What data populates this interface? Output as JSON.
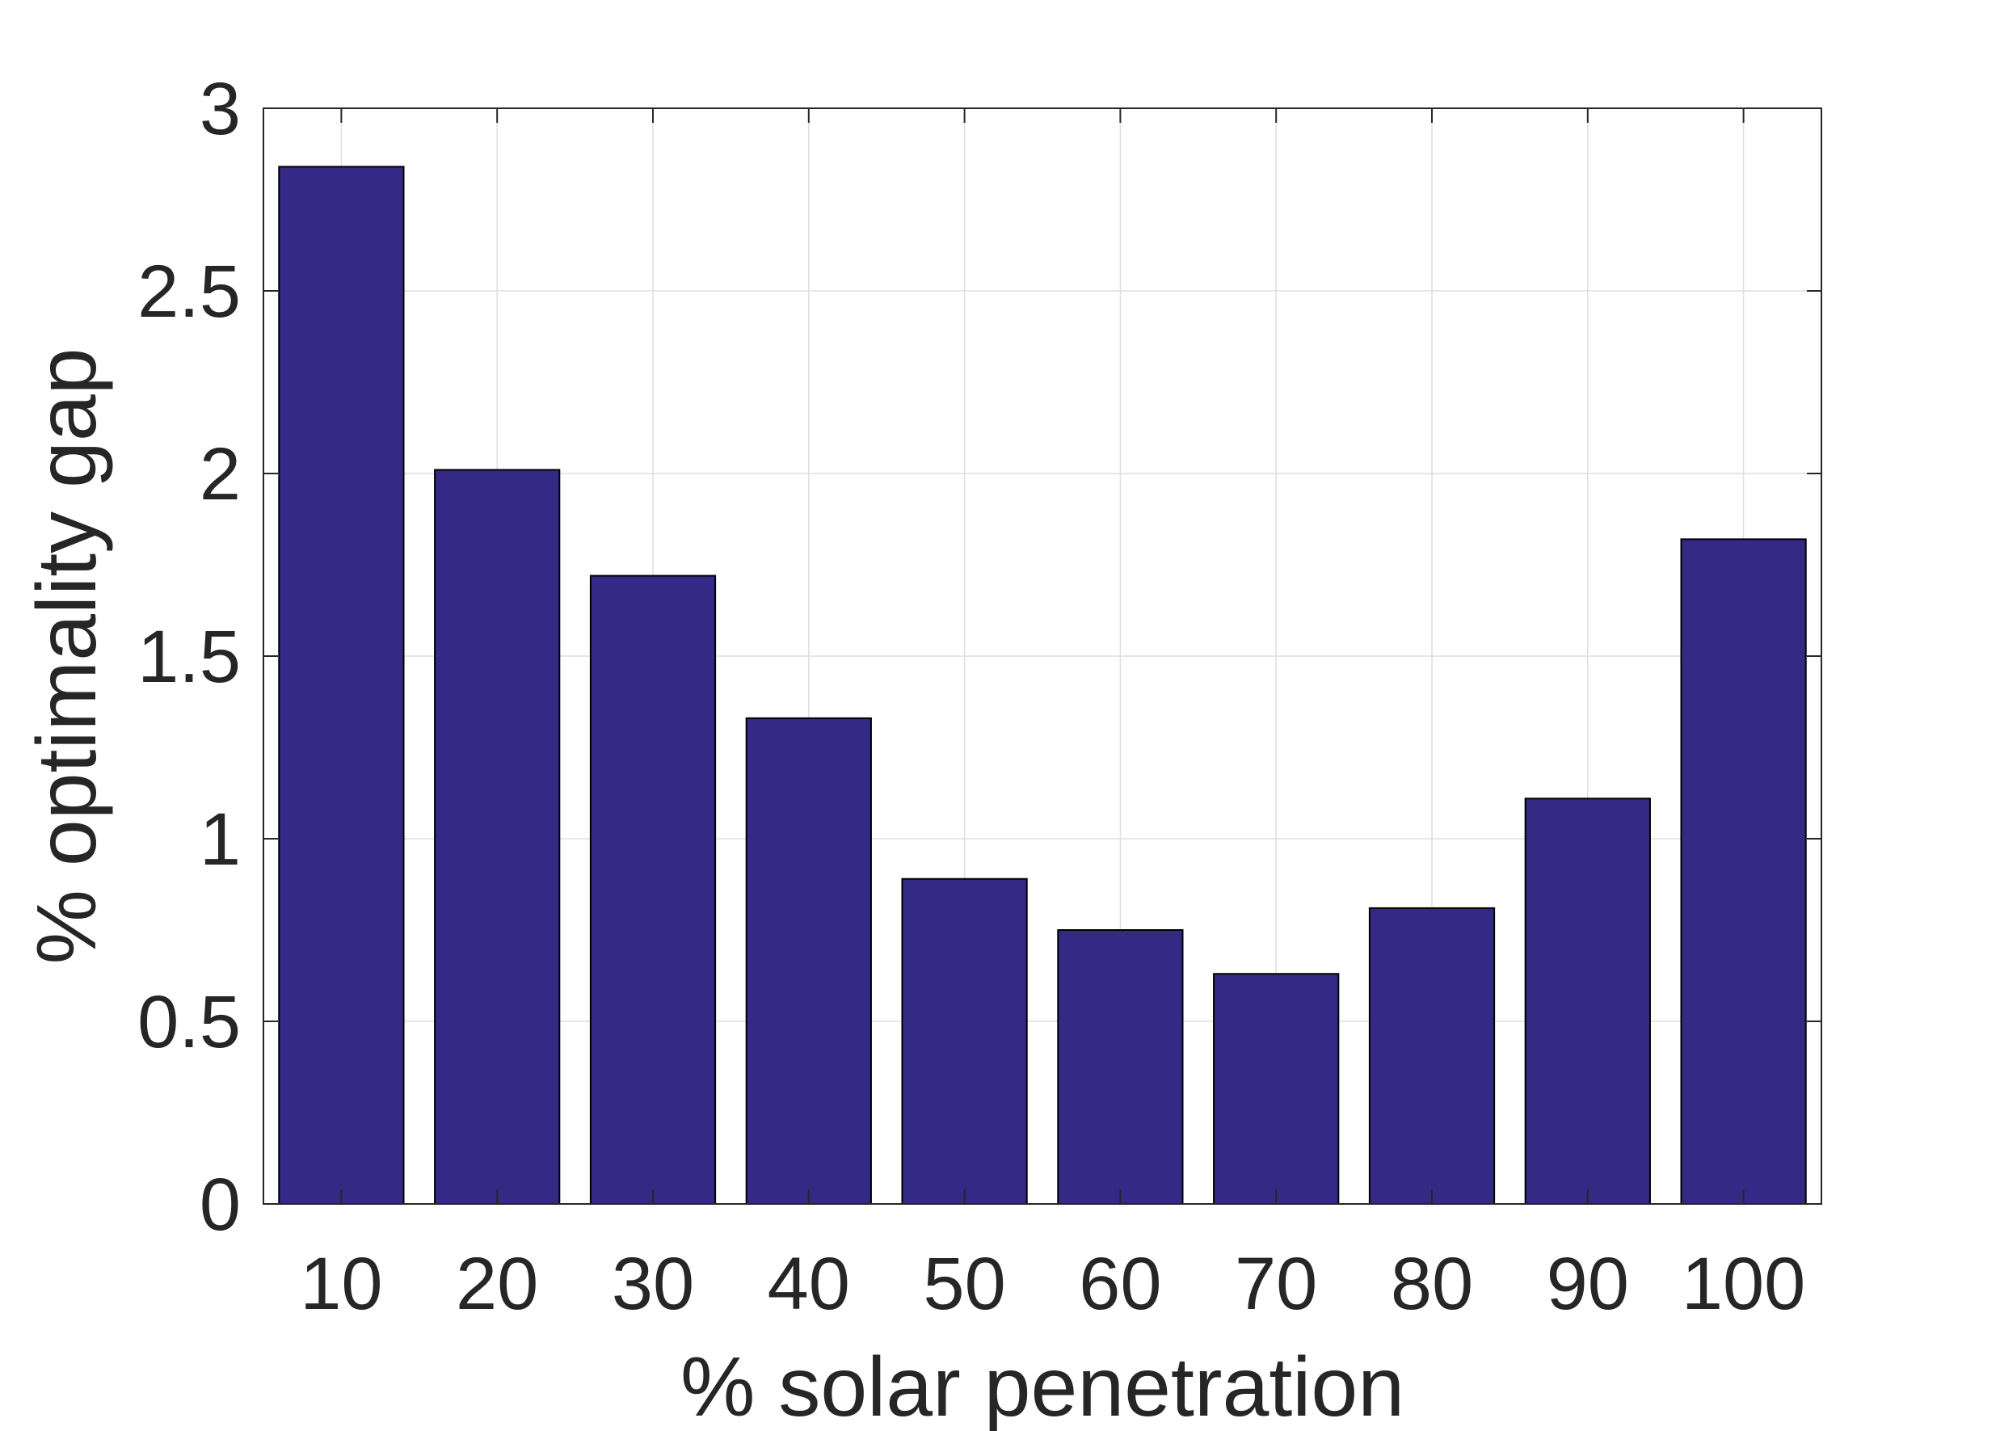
{
  "chart_data": {
    "type": "bar",
    "categories": [
      "10",
      "20",
      "30",
      "40",
      "50",
      "60",
      "70",
      "80",
      "90",
      "100"
    ],
    "values": [
      2.84,
      2.01,
      1.72,
      1.33,
      0.89,
      0.75,
      0.63,
      0.81,
      1.11,
      1.82
    ],
    "xlabel": "% solar penetration",
    "ylabel": "% optimality gap",
    "ylim": [
      0,
      3
    ],
    "yticks": [
      0,
      0.5,
      1,
      1.5,
      2,
      2.5,
      3
    ],
    "ytick_labels": [
      "0",
      "0.5",
      "1",
      "1.5",
      "2",
      "2.5",
      "3"
    ],
    "grid": true,
    "colors": {
      "bar_fill": "#342a85",
      "bar_edge": "#000000",
      "axis": "#262626",
      "grid": "#dedede"
    }
  }
}
